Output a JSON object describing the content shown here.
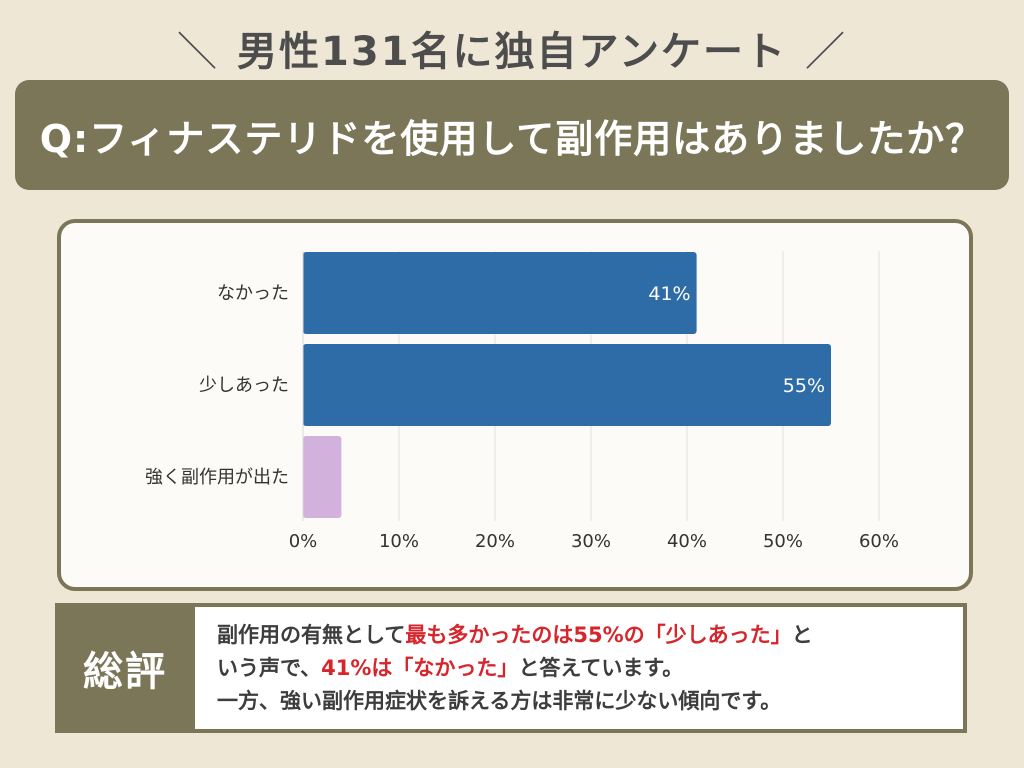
{
  "header": {
    "slash_left": "＼",
    "title": "男性131名に独自アンケート",
    "slash_right": "／"
  },
  "question": "Q:フィナステリドを使用して副作用はありましたか？",
  "chart_data": {
    "type": "bar",
    "orientation": "horizontal",
    "categories": [
      "なかった",
      "少しあった",
      "強く副作用が出た"
    ],
    "values": [
      41,
      55,
      4
    ],
    "data_labels": [
      "41%",
      "55%",
      ""
    ],
    "colors": [
      "#2e6ca8",
      "#2e6ca8",
      "#d2b1dc"
    ],
    "xlim": [
      0,
      60
    ],
    "xticks": [
      "0%",
      "10%",
      "20%",
      "30%",
      "40%",
      "50%",
      "60%"
    ],
    "grid": true,
    "title": "",
    "xlabel": "",
    "ylabel": ""
  },
  "summary": {
    "label": "総評",
    "line1_a": "副作用の有無として",
    "line1_b": "最も多かったのは55%の「少しあった」",
    "line1_c": "と",
    "line2_a": "いう声で、",
    "line2_b": "41%は「なかった」",
    "line2_c": "と答えています。",
    "line3": "一方、強い副作用症状を訴える方は非常に少ない傾向です。"
  }
}
